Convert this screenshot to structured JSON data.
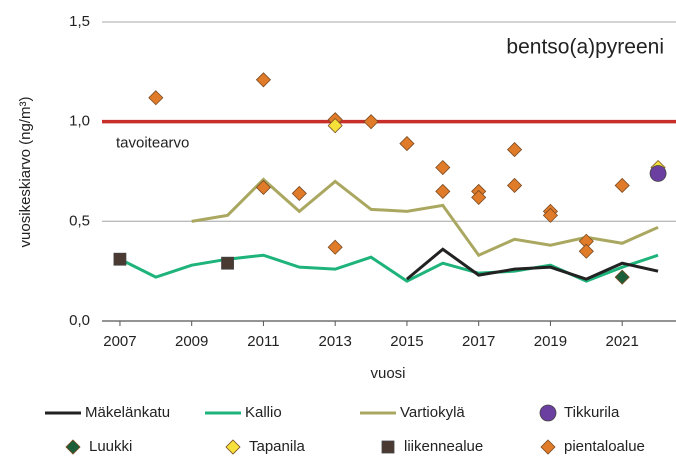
{
  "chart_data": {
    "type": "line",
    "annotation": "bentso(a)pyreeni",
    "xlabel": "vuosi",
    "ylabel": "vuosikeskiarvo (ng/m³)",
    "xlim": [
      2006.5,
      2022.5
    ],
    "xticks": [
      2007,
      2009,
      2011,
      2013,
      2015,
      2017,
      2019,
      2021
    ],
    "ylim": [
      0,
      1.5
    ],
    "yticks": [
      {
        "value": 0,
        "label": "0,0"
      },
      {
        "value": 0.5,
        "label": "0,5"
      },
      {
        "value": 1,
        "label": "1,0"
      },
      {
        "value": 1.5,
        "label": "1,5"
      }
    ],
    "target": {
      "value": 1,
      "label": "tavoitearvo",
      "color": "#c62f2a"
    },
    "series": [
      {
        "name": "Mäkelänkatu",
        "color": "#222222",
        "marker": "line",
        "x": [
          2015,
          2016,
          2017,
          2018,
          2019,
          2020,
          2021,
          2022
        ],
        "values": [
          0.21,
          0.36,
          0.23,
          0.26,
          0.27,
          0.21,
          0.29,
          0.25
        ]
      },
      {
        "name": "Kallio",
        "color": "#1db37a",
        "marker": "line",
        "x": [
          2007,
          2008,
          2009,
          2010,
          2011,
          2012,
          2013,
          2014,
          2015,
          2016,
          2017,
          2018,
          2019,
          2020,
          2021,
          2022
        ],
        "values": [
          0.31,
          0.22,
          0.28,
          0.31,
          0.33,
          0.27,
          0.26,
          0.32,
          0.2,
          0.29,
          0.24,
          0.25,
          0.28,
          0.2,
          0.27,
          0.33
        ]
      },
      {
        "name": "Vartiokylä",
        "color": "#aaa860",
        "marker": "line",
        "x": [
          2009,
          2010,
          2011,
          2012,
          2013,
          2014,
          2015,
          2016,
          2017,
          2018,
          2019,
          2020,
          2021,
          2022
        ],
        "values": [
          0.5,
          0.53,
          0.71,
          0.55,
          0.7,
          0.56,
          0.55,
          0.58,
          0.33,
          0.41,
          0.38,
          0.42,
          0.39,
          0.47
        ]
      },
      {
        "name": "Tikkurila",
        "color": "#6b3fa0",
        "marker": "circle",
        "x": [
          2022
        ],
        "values": [
          0.74
        ]
      },
      {
        "name": "Luukki",
        "color": "#1d5e3a",
        "marker": "diamond",
        "x": [
          2021
        ],
        "values": [
          0.22
        ]
      },
      {
        "name": "Tapanila",
        "color": "#f5e13a",
        "marker": "diamond",
        "x": [
          2013,
          2022
        ],
        "values": [
          0.98,
          0.77
        ]
      },
      {
        "name": "liikennealue",
        "color": "#4a3a32",
        "marker": "square",
        "x": [
          2007,
          2010
        ],
        "values": [
          0.31,
          0.29
        ]
      },
      {
        "name": "pientaloalue",
        "color": "#e07b2a",
        "marker": "diamond",
        "x": [
          2008,
          2011,
          2011,
          2012,
          2013,
          2013,
          2014,
          2015,
          2016,
          2016,
          2017,
          2017,
          2018,
          2018,
          2019,
          2019,
          2020,
          2020,
          2021
        ],
        "values": [
          1.12,
          1.21,
          0.67,
          0.64,
          1.01,
          0.37,
          1.0,
          0.89,
          0.77,
          0.65,
          0.65,
          0.62,
          0.86,
          0.68,
          0.55,
          0.53,
          0.4,
          0.35,
          0.68
        ]
      }
    ]
  }
}
